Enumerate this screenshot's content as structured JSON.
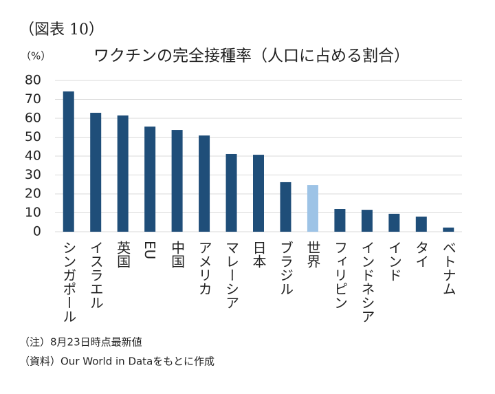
{
  "chart_data": {
    "type": "bar",
    "label": "（図表 10）",
    "y_label": "（%）",
    "title": "ワクチンの完全接種率（人口に占める割合）",
    "categories": [
      "シンガポール",
      "イスラエル",
      "英国",
      "EU",
      "中国",
      "アメリカ",
      "マレーシア",
      "日本",
      "ブラジル",
      "世界",
      "フィリピン",
      "インドネシア",
      "インド",
      "タイ",
      "ベトナム"
    ],
    "values": [
      74.2,
      62.9,
      61.5,
      55.6,
      53.8,
      50.9,
      41.1,
      40.7,
      26.2,
      24.7,
      12,
      11.6,
      9.5,
      8,
      2.2
    ],
    "colors": [
      "#1f4e79",
      "#1f4e79",
      "#1f4e79",
      "#1f4e79",
      "#1f4e79",
      "#1f4e79",
      "#1f4e79",
      "#1f4e79",
      "#1f4e79",
      "#9dc3e6",
      "#1f4e79",
      "#1f4e79",
      "#1f4e79",
      "#1f4e79",
      "#1f4e79"
    ],
    "ylim": [
      0,
      80
    ],
    "yticks": [
      0,
      10,
      20,
      30,
      40,
      50,
      60,
      70,
      80
    ],
    "grid": true,
    "notes": [
      "（注）8月23日時点最新値",
      "（資料）Our World in Dataをもとに作成"
    ]
  }
}
